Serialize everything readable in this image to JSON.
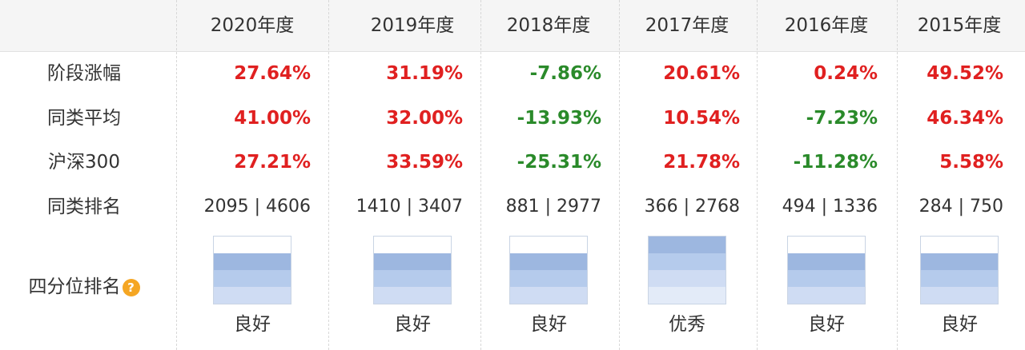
{
  "years": [
    "2020年度",
    "2019年度",
    "2018年度",
    "2017年度",
    "2016年度",
    "2015年度"
  ],
  "row_labels": {
    "stage_change": "阶段涨幅",
    "peer_avg": "同类平均",
    "csi300": "沪深300",
    "peer_rank": "同类排名",
    "quartile": "四分位排名"
  },
  "stage_change": [
    "27.64%",
    "31.19%",
    "-7.86%",
    "20.61%",
    "0.24%",
    "49.52%"
  ],
  "peer_avg": [
    "41.00%",
    "32.00%",
    "-13.93%",
    "10.54%",
    "-7.23%",
    "46.34%"
  ],
  "csi300": [
    "27.21%",
    "33.59%",
    "-25.31%",
    "21.78%",
    "-11.28%",
    "5.58%"
  ],
  "peer_rank": [
    "2095 | 4606",
    "1410 | 3407",
    "881 | 2977",
    "366 | 2768",
    "494 | 1336",
    "284 | 750"
  ],
  "quartile": {
    "levels": [
      "良好",
      "良好",
      "良好",
      "优秀",
      "良好",
      "良好"
    ],
    "level_index": [
      2,
      2,
      2,
      1,
      2,
      2
    ],
    "icon": "question-badge-icon"
  },
  "colors": {
    "positive": "#e02020",
    "negative": "#2a8a2a",
    "band_top": "#9db7e0",
    "band_2": "#b5cbec",
    "band_3": "#cfdcf3",
    "band_4": "#e3ebf8",
    "icon": "#f5a623"
  }
}
